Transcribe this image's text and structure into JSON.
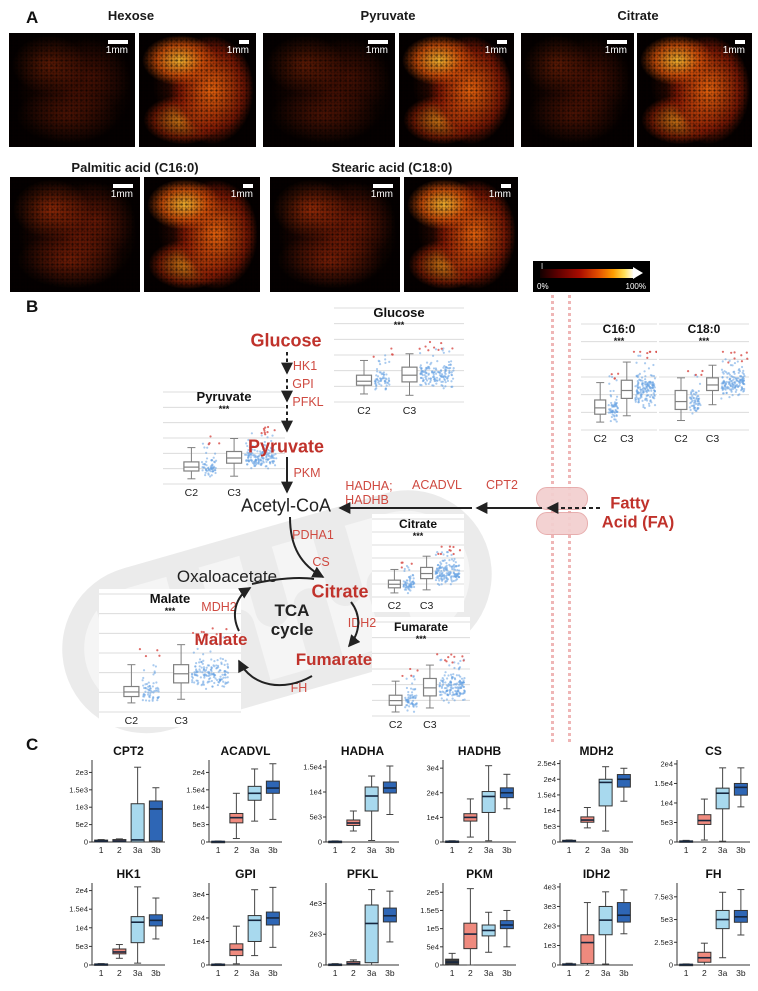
{
  "figure_labels": {
    "a": "A",
    "b": "B",
    "c": "C"
  },
  "panel_a": {
    "row1_titles": [
      "Hexose",
      "Pyruvate",
      "Citrate"
    ],
    "row2_titles": [
      "Palmitic acid (C16:0)",
      "Stearic acid (C18:0)"
    ],
    "scale_bar": "1mm",
    "colorbar": {
      "min": "0%",
      "max": "100%"
    },
    "heatmap_colors": [
      "#120000",
      "#a80c00",
      "#e34e00",
      "#ff9d00",
      "#ffffff"
    ]
  },
  "panel_b": {
    "nodes": {
      "glucose": "Glucose",
      "pyruvate": "Pyruvate",
      "acetyl_coa": "Acetyl-CoA",
      "oxaloacetate": "Oxaloacetate",
      "citrate": "Citrate",
      "malate": "Malate",
      "fumarate": "Fumarate"
    },
    "tca": {
      "line1": "TCA",
      "line2": "cycle"
    },
    "fatty_acid": {
      "line1": "Fatty",
      "line2": "Acid (FA)"
    },
    "enzymes": {
      "hk1": "HK1",
      "gpi": "GPI",
      "pfkl": "PFKL",
      "pkm": "PKM",
      "pdha1": "PDHA1",
      "cs": "CS",
      "mdh2": "MDH2",
      "idh2": "IDH2",
      "fh": "FH",
      "hadha": "HADHA;",
      "hadhb": "HADHB",
      "acadvl": "ACADVL",
      "cpt2": "CPT2"
    },
    "colors": {
      "metabolite_red": "#c0322b",
      "enzyme_red": "#cf4a41",
      "membrane_pink": "#efb6b6",
      "jitter_blue": "#5b9bd5",
      "outlier_red": "#d9534f"
    }
  },
  "panel_c": {
    "category_colors": [
      "#3c3c3c",
      "#ef8a7e",
      "#a8d9ee",
      "#2e66b5"
    ],
    "median_color": "#16263e",
    "categories": [
      "1",
      "2",
      "3a",
      "3b"
    ]
  },
  "chart_data": [
    {
      "id": "b_glucose",
      "panel": "B",
      "type": "boxplot_jitter",
      "title": "Glucose",
      "significance": "***",
      "categories": [
        "C2",
        "C3"
      ],
      "y_axis": "relative abundance 0-100 (no tick labels shown)",
      "box_stats": [
        [
          12,
          25,
          31,
          40,
          62
        ],
        [
          10,
          30,
          40,
          52,
          72
        ]
      ]
    },
    {
      "id": "b_pyruvate",
      "panel": "B",
      "type": "boxplot_jitter",
      "title": "Pyruvate",
      "significance": "***",
      "categories": [
        "C2",
        "C3"
      ],
      "box_stats": [
        [
          8,
          20,
          26,
          34,
          56
        ],
        [
          12,
          32,
          40,
          50,
          70
        ]
      ]
    },
    {
      "id": "b_c16",
      "panel": "B",
      "type": "boxplot_jitter",
      "title": "C16:0",
      "significance": "***",
      "categories": [
        "C2",
        "C3"
      ],
      "box_stats": [
        [
          10,
          20,
          28,
          38,
          60
        ],
        [
          18,
          40,
          50,
          63,
          86
        ]
      ]
    },
    {
      "id": "b_c18",
      "panel": "B",
      "type": "boxplot_jitter",
      "title": "C18:0",
      "significance": "***",
      "categories": [
        "C2",
        "C3"
      ],
      "box_stats": [
        [
          12,
          26,
          36,
          50,
          66
        ],
        [
          32,
          50,
          57,
          66,
          82
        ]
      ]
    },
    {
      "id": "b_citrate",
      "panel": "B",
      "type": "boxplot_jitter",
      "title": "Citrate",
      "significance": "***",
      "categories": [
        "C2",
        "C3"
      ],
      "box_stats": [
        [
          8,
          18,
          25,
          33,
          54
        ],
        [
          14,
          36,
          46,
          58,
          80
        ]
      ]
    },
    {
      "id": "b_fumarate",
      "panel": "B",
      "type": "boxplot_jitter",
      "title": "Fumarate",
      "significance": "***",
      "categories": [
        "C2",
        "C3"
      ],
      "box_stats": [
        [
          6,
          16,
          23,
          31,
          52
        ],
        [
          12,
          30,
          42,
          56,
          76
        ]
      ]
    },
    {
      "id": "b_malate",
      "panel": "B",
      "type": "boxplot_jitter",
      "title": "Malate",
      "significance": "***",
      "categories": [
        "C2",
        "C3"
      ],
      "box_stats": [
        [
          10,
          17,
          22,
          28,
          52
        ],
        [
          14,
          32,
          42,
          52,
          74
        ]
      ]
    },
    {
      "id": "c_cpt2",
      "panel": "C",
      "type": "boxplot",
      "title": "CPT2",
      "categories": [
        "1",
        "2",
        "3a",
        "3b"
      ],
      "ytick_labels": [
        "0",
        "5e2",
        "1e3",
        "1.5e3",
        "2e3"
      ],
      "ytick_values": [
        0,
        500,
        1000,
        1500,
        2000
      ],
      "ymax": 2300,
      "box_stats": [
        [
          0,
          0,
          25,
          55,
          70
        ],
        [
          0,
          0,
          30,
          70,
          90
        ],
        [
          0,
          0,
          60,
          1100,
          2150
        ],
        [
          0,
          30,
          950,
          1180,
          1560
        ]
      ]
    },
    {
      "id": "c_acadvl",
      "panel": "C",
      "type": "boxplot",
      "title": "ACADVL",
      "categories": [
        "1",
        "2",
        "3a",
        "3b"
      ],
      "ytick_labels": [
        "0",
        "5e3",
        "1e4",
        "1.5e4",
        "2e4"
      ],
      "ytick_values": [
        0,
        5000,
        10000,
        15000,
        20000
      ],
      "ymax": 23000,
      "box_stats": [
        [
          0,
          0,
          100,
          220,
          280
        ],
        [
          1000,
          5500,
          7000,
          8200,
          14000
        ],
        [
          6000,
          12000,
          14000,
          16000,
          21000
        ],
        [
          6500,
          14000,
          15500,
          17500,
          22500
        ]
      ]
    },
    {
      "id": "c_hadha",
      "panel": "C",
      "type": "boxplot",
      "title": "HADHA",
      "categories": [
        "1",
        "2",
        "3a",
        "3b"
      ],
      "ytick_labels": [
        "0",
        "5e3",
        "1e4",
        "1.5e4"
      ],
      "ytick_values": [
        0,
        5000,
        10000,
        15000
      ],
      "ymax": 16000,
      "box_stats": [
        [
          0,
          0,
          80,
          160,
          220
        ],
        [
          2200,
          3300,
          3800,
          4400,
          6200
        ],
        [
          300,
          6200,
          9200,
          11000,
          13200
        ],
        [
          5500,
          9800,
          10800,
          12000,
          15200
        ]
      ]
    },
    {
      "id": "c_hadhb",
      "panel": "C",
      "type": "boxplot",
      "title": "HADHB",
      "categories": [
        "1",
        "2",
        "3a",
        "3b"
      ],
      "ytick_labels": [
        "0",
        "1e4",
        "2e4",
        "3e4"
      ],
      "ytick_values": [
        0,
        10000,
        20000,
        30000
      ],
      "ymax": 32500,
      "box_stats": [
        [
          0,
          0,
          200,
          400,
          520
        ],
        [
          2000,
          8500,
          10000,
          11500,
          17500
        ],
        [
          500,
          12000,
          18500,
          20500,
          31000
        ],
        [
          13500,
          18000,
          20000,
          22000,
          27500
        ]
      ]
    },
    {
      "id": "c_mdh2",
      "panel": "C",
      "type": "boxplot",
      "title": "MDH2",
      "categories": [
        "1",
        "2",
        "3a",
        "3b"
      ],
      "ytick_labels": [
        "0",
        "5e3",
        "1e4",
        "1.5e4",
        "2e4",
        "2.5e4"
      ],
      "ytick_values": [
        0,
        5000,
        10000,
        15000,
        20000,
        25000
      ],
      "ymax": 25500,
      "box_stats": [
        [
          0,
          0,
          300,
          550,
          650
        ],
        [
          4500,
          6300,
          7000,
          8000,
          11000
        ],
        [
          3500,
          11500,
          19000,
          20000,
          24000
        ],
        [
          13000,
          17500,
          20000,
          21500,
          23500
        ]
      ]
    },
    {
      "id": "c_cs",
      "panel": "C",
      "type": "boxplot",
      "title": "CS",
      "categories": [
        "1",
        "2",
        "3a",
        "3b"
      ],
      "ytick_labels": [
        "0",
        "5e3",
        "1e4",
        "1.5e4",
        "2e4"
      ],
      "ytick_values": [
        0,
        5000,
        10000,
        15000,
        20000
      ],
      "ymax": 20500,
      "box_stats": [
        [
          0,
          0,
          150,
          300,
          420
        ],
        [
          500,
          4500,
          5500,
          7000,
          11000
        ],
        [
          200,
          8500,
          12500,
          13800,
          19000
        ],
        [
          9000,
          12000,
          14000,
          15000,
          19000
        ]
      ]
    },
    {
      "id": "c_hk1",
      "panel": "C",
      "type": "boxplot",
      "title": "HK1",
      "categories": [
        "1",
        "2",
        "3a",
        "3b"
      ],
      "ytick_labels": [
        "0",
        "5e3",
        "1e4",
        "1.5e4",
        "2e4"
      ],
      "ytick_values": [
        0,
        5000,
        10000,
        15000,
        20000
      ],
      "ymax": 21500,
      "box_stats": [
        [
          0,
          0,
          150,
          300,
          380
        ],
        [
          1800,
          3000,
          3500,
          4300,
          5500
        ],
        [
          500,
          6000,
          11500,
          13000,
          21000
        ],
        [
          7000,
          10500,
          12000,
          13500,
          18000
        ]
      ]
    },
    {
      "id": "c_gpi",
      "panel": "C",
      "type": "boxplot",
      "title": "GPI",
      "categories": [
        "1",
        "2",
        "3a",
        "3b"
      ],
      "ytick_labels": [
        "0",
        "1e4",
        "2e4",
        "3e4"
      ],
      "ytick_values": [
        0,
        10000,
        20000,
        30000
      ],
      "ymax": 34000,
      "box_stats": [
        [
          0,
          0,
          200,
          400,
          520
        ],
        [
          500,
          4000,
          6500,
          9000,
          16500
        ],
        [
          4000,
          10000,
          19000,
          21000,
          32000
        ],
        [
          7500,
          17000,
          20000,
          22500,
          33000
        ]
      ]
    },
    {
      "id": "c_pfkl",
      "panel": "C",
      "type": "boxplot",
      "title": "PFKL",
      "categories": [
        "1",
        "2",
        "3a",
        "3b"
      ],
      "ytick_labels": [
        "0",
        "2e3",
        "4e3"
      ],
      "ytick_values": [
        0,
        2000,
        4000
      ],
      "ymax": 5200,
      "box_stats": [
        [
          0,
          0,
          30,
          60,
          90
        ],
        [
          0,
          30,
          100,
          220,
          330
        ],
        [
          0,
          150,
          2700,
          3900,
          4900
        ],
        [
          1500,
          2800,
          3200,
          3700,
          4800
        ]
      ]
    },
    {
      "id": "c_pkm",
      "panel": "C",
      "type": "boxplot",
      "title": "PKM",
      "categories": [
        "1",
        "2",
        "3a",
        "3b"
      ],
      "ytick_labels": [
        "0",
        "5e4",
        "1e5",
        "1.5e5",
        "2e5"
      ],
      "ytick_values": [
        0,
        50000,
        100000,
        150000,
        200000
      ],
      "ymax": 220000,
      "box_stats": [
        [
          0,
          2000,
          8000,
          16000,
          32000
        ],
        [
          0,
          45000,
          85000,
          115000,
          210000
        ],
        [
          35000,
          80000,
          95000,
          110000,
          145000
        ],
        [
          50000,
          100000,
          110000,
          122000,
          150000
        ]
      ]
    },
    {
      "id": "c_idh2",
      "panel": "C",
      "type": "boxplot",
      "title": "IDH2",
      "categories": [
        "1",
        "2",
        "3a",
        "3b"
      ],
      "ytick_labels": [
        "0",
        "1e3",
        "2e3",
        "3e3",
        "4e3"
      ],
      "ytick_values": [
        0,
        1000,
        2000,
        3000,
        4000
      ],
      "ymax": 4100,
      "box_stats": [
        [
          0,
          0,
          30,
          60,
          90
        ],
        [
          0,
          80,
          1150,
          1550,
          3200
        ],
        [
          50,
          1550,
          2300,
          3000,
          3750
        ],
        [
          1600,
          2200,
          2550,
          3200,
          3850
        ]
      ]
    },
    {
      "id": "c_fh",
      "panel": "C",
      "type": "boxplot",
      "title": "FH",
      "categories": [
        "1",
        "2",
        "3a",
        "3b"
      ],
      "ytick_labels": [
        "0",
        "2.5e3",
        "5e3",
        "7.5e3"
      ],
      "ytick_values": [
        0,
        2500,
        5000,
        7500
      ],
      "ymax": 8800,
      "box_stats": [
        [
          0,
          0,
          40,
          90,
          120
        ],
        [
          0,
          300,
          800,
          1400,
          2400
        ],
        [
          800,
          4000,
          5000,
          6000,
          8000
        ],
        [
          3300,
          4700,
          5300,
          6000,
          8300
        ]
      ]
    }
  ]
}
